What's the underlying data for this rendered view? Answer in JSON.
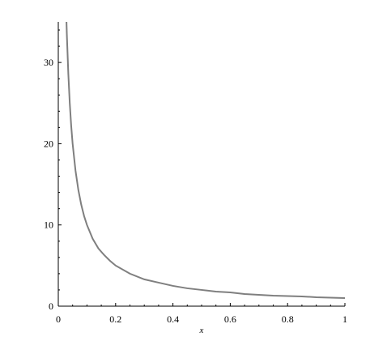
{
  "chart_data": {
    "type": "line",
    "title": "",
    "xlabel": "x",
    "ylabel": "",
    "xlim": [
      0,
      1
    ],
    "ylim": [
      0,
      35
    ],
    "grid": false,
    "legend": "none",
    "x_ticks": [
      0,
      0.2,
      0.4,
      0.6,
      0.8,
      1
    ],
    "x_tick_labels": [
      "0",
      "0.2",
      "0.4",
      "0.6",
      "0.8",
      "1"
    ],
    "y_ticks": [
      0,
      10,
      20,
      30
    ],
    "y_tick_labels": [
      "0",
      "10",
      "20",
      "30"
    ],
    "line_color": "#7f7f7f",
    "series": [
      {
        "x": [
          0.03,
          0.035,
          0.04,
          0.045,
          0.05,
          0.06,
          0.07,
          0.08,
          0.09,
          0.1,
          0.12,
          0.14,
          0.16,
          0.18,
          0.2,
          0.25,
          0.3,
          0.35,
          0.4,
          0.45,
          0.5,
          0.55,
          0.6,
          0.65,
          0.7,
          0.75,
          0.8,
          0.85,
          0.9,
          0.95,
          1.0
        ],
        "y": [
          33.3,
          28.6,
          25.0,
          22.2,
          20.0,
          16.7,
          14.3,
          12.5,
          11.1,
          10.0,
          8.3,
          7.1,
          6.3,
          5.6,
          5.0,
          4.0,
          3.3,
          2.9,
          2.5,
          2.2,
          2.0,
          1.8,
          1.7,
          1.5,
          1.4,
          1.3,
          1.25,
          1.2,
          1.1,
          1.05,
          1.0
        ]
      }
    ]
  }
}
